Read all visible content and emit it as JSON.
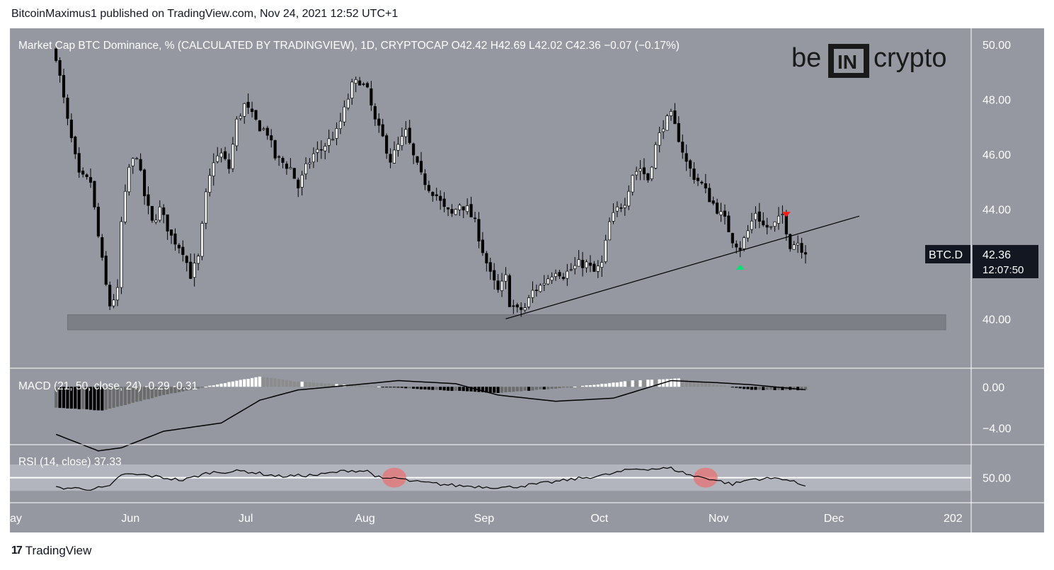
{
  "header": {
    "published": "BitcoinMaximus1 published on TradingView.com, Nov 24, 2021 12:52 UTC+1"
  },
  "footer": {
    "brand": "TradingView"
  },
  "logo": {
    "left": "be",
    "middle": "IN",
    "right": "crypto"
  },
  "legend": {
    "title": "Market Cap BTC Dominance, % (CALCULATED BY TRADINGVIEW), 1D, CRYPTOCAP",
    "o_label": "O",
    "o_value": "42.42",
    "h_label": "H",
    "h_value": "42.69",
    "l_label": "L",
    "l_value": "42.02",
    "c_label": "C",
    "c_value": "42.36",
    "change": "−0.07 (−0.17%)"
  },
  "price_badge": {
    "symbol": "BTC.D",
    "price": "42.36",
    "countdown": "12:07:50"
  },
  "macd_legend": {
    "label": "MACD (21, 50, close, 24)",
    "v1": "-0.29",
    "v2": "-0.31"
  },
  "rsi_legend": {
    "label": "RSI (14, close)",
    "value": "37.33"
  },
  "colors": {
    "background": "#9598a1",
    "candle_up": "#ffffff",
    "candle_down": "#000000",
    "arrow_up": "#00e676",
    "arrow_down": "#ff1a1a",
    "rsi_highlight": "#e57373",
    "support_zone": "#7d7f87"
  },
  "chart_data": [
    {
      "type": "candlestick",
      "title": "Market Cap BTC Dominance, % (CALCULATED BY TRADINGVIEW), 1D, CRYPTOCAP",
      "x_axis_labels": [
        "ay",
        "Jun",
        "Jul",
        "Aug",
        "Sep",
        "Oct",
        "Nov",
        "Dec",
        "202"
      ],
      "y_ticks": [
        "50.00",
        "48.00",
        "46.00",
        "44.00",
        "40.00"
      ],
      "ylim": [
        38.2,
        50.6
      ],
      "close_path": [
        [
          "May 13",
          49.6
        ],
        [
          "May 16",
          47.2
        ],
        [
          "May 19",
          45.2
        ],
        [
          "May 22",
          45.0
        ],
        [
          "May 24",
          43.0
        ],
        [
          "May 26",
          41.2
        ],
        [
          "May 27",
          40.5
        ],
        [
          "May 29",
          41.0
        ],
        [
          "May 30",
          43.5
        ],
        [
          "Jun 1",
          45.5
        ],
        [
          "Jun 3",
          46.0
        ],
        [
          "Jun 5",
          44.5
        ],
        [
          "Jun 7",
          43.5
        ],
        [
          "Jun 9",
          44.0
        ],
        [
          "Jun 12",
          43.0
        ],
        [
          "Jun 15",
          42.5
        ],
        [
          "Jun 17",
          41.6
        ],
        [
          "Jun 19",
          42.2
        ],
        [
          "Jun 21",
          44.5
        ],
        [
          "Jun 23",
          45.8
        ],
        [
          "Jun 25",
          46.0
        ],
        [
          "Jun 27",
          45.5
        ],
        [
          "Jun 29",
          47.2
        ],
        [
          "Jul 1",
          47.8
        ],
        [
          "Jul 3",
          47.4
        ],
        [
          "Jul 5",
          47.0
        ],
        [
          "Jul 7",
          46.8
        ],
        [
          "Jul 9",
          45.9
        ],
        [
          "Jul 11",
          45.7
        ],
        [
          "Jul 13",
          45.5
        ],
        [
          "Jul 15",
          44.8
        ],
        [
          "Jul 17",
          45.5
        ],
        [
          "Jul 19",
          46.0
        ],
        [
          "Jul 21",
          46.2
        ],
        [
          "Jul 23",
          46.5
        ],
        [
          "Jul 25",
          46.8
        ],
        [
          "Jul 27",
          47.6
        ],
        [
          "Jul 29",
          48.5
        ],
        [
          "Jul 31",
          48.7
        ],
        [
          "Aug 2",
          48.3
        ],
        [
          "Aug 4",
          47.2
        ],
        [
          "Aug 6",
          46.6
        ],
        [
          "Aug 8",
          45.8
        ],
        [
          "Aug 10",
          46.3
        ],
        [
          "Aug 12",
          46.8
        ],
        [
          "Aug 14",
          45.9
        ],
        [
          "Aug 16",
          45.2
        ],
        [
          "Aug 18",
          44.8
        ],
        [
          "Aug 20",
          44.5
        ],
        [
          "Aug 22",
          44.0
        ],
        [
          "Aug 24",
          43.8
        ],
        [
          "Aug 26",
          44.2
        ],
        [
          "Aug 28",
          44.0
        ],
        [
          "Aug 30",
          43.5
        ],
        [
          "Sep 1",
          42.5
        ],
        [
          "Sep 3",
          41.6
        ],
        [
          "Sep 5",
          41.0
        ],
        [
          "Sep 7",
          41.5
        ],
        [
          "Sep 8",
          40.6
        ],
        [
          "Sep 10",
          40.3
        ],
        [
          "Sep 12",
          40.4
        ],
        [
          "Sep 14",
          41.0
        ],
        [
          "Sep 16",
          41.2
        ],
        [
          "Sep 18",
          41.5
        ],
        [
          "Sep 20",
          41.8
        ],
        [
          "Sep 22",
          41.6
        ],
        [
          "Sep 24",
          41.8
        ],
        [
          "Sep 26",
          42.0
        ],
        [
          "Sep 28",
          42.0
        ],
        [
          "Sep 30",
          41.7
        ],
        [
          "Oct 2",
          42.0
        ],
        [
          "Oct 4",
          43.5
        ],
        [
          "Oct 6",
          44.0
        ],
        [
          "Oct 8",
          44.3
        ],
        [
          "Oct 10",
          45.3
        ],
        [
          "Oct 12",
          45.5
        ],
        [
          "Oct 14",
          45.1
        ],
        [
          "Oct 16",
          46.3
        ],
        [
          "Oct 18",
          47.1
        ],
        [
          "Oct 20",
          47.4
        ],
        [
          "Oct 22",
          46.6
        ],
        [
          "Oct 24",
          45.7
        ],
        [
          "Oct 26",
          45.2
        ],
        [
          "Oct 28",
          44.9
        ],
        [
          "Oct 30",
          44.4
        ],
        [
          "Nov 1",
          44.0
        ],
        [
          "Nov 3",
          43.6
        ],
        [
          "Nov 5",
          42.9
        ],
        [
          "Nov 7",
          42.6
        ],
        [
          "Nov 9",
          43.2
        ],
        [
          "Nov 11",
          43.9
        ],
        [
          "Nov 13",
          43.4
        ],
        [
          "Nov 15",
          43.3
        ],
        [
          "Nov 17",
          43.6
        ],
        [
          "Nov 18",
          43.8
        ],
        [
          "Nov 20",
          42.7
        ],
        [
          "Nov 22",
          42.8
        ],
        [
          "Nov 24",
          42.36
        ]
      ],
      "annotations": {
        "support_zone": {
          "from": "May 16",
          "to": "Dec 30",
          "low": 39.6,
          "high": 40.15
        },
        "ascending_trendline": {
          "from": [
            "Sep 7",
            40.0
          ],
          "to": [
            "Dec 8",
            43.75
          ]
        },
        "arrow_up": {
          "x": "Nov 7",
          "y": 41.9
        },
        "arrow_down": {
          "x": "Nov 19",
          "y": 43.8
        }
      }
    },
    {
      "type": "histogram+line",
      "title": "MACD (21, 50, close, 24)",
      "y_ticks": [
        "0.00",
        "−4.00"
      ],
      "ylim": [
        -5.6,
        1.8
      ],
      "macd_line": [
        [
          "May 13",
          -4.6
        ],
        [
          "May 24",
          -6.2
        ],
        [
          "May 30",
          -5.9
        ],
        [
          "Jun 10",
          -4.3
        ],
        [
          "Jun 25",
          -3.5
        ],
        [
          "Jul 5",
          -1.3
        ],
        [
          "Jul 15",
          -0.3
        ],
        [
          "Jul 30",
          0.2
        ],
        [
          "Aug 10",
          0.6
        ],
        [
          "Aug 25",
          0.3
        ],
        [
          "Sep 5",
          -0.8
        ],
        [
          "Sep 20",
          -1.4
        ],
        [
          "Oct 5",
          -1.1
        ],
        [
          "Oct 20",
          0.6
        ],
        [
          "Nov 1",
          0.4
        ],
        [
          "Nov 10",
          0.2
        ],
        [
          "Nov 24",
          -0.29
        ]
      ],
      "histogram": [
        [
          "May 13",
          -2.0
        ],
        [
          "May 25",
          -2.3
        ],
        [
          "Jun 10",
          -0.8
        ],
        [
          "Jun 25",
          0.3
        ],
        [
          "Jul 5",
          1.0
        ],
        [
          "Jul 15",
          0.5
        ],
        [
          "Aug 1",
          0.1
        ],
        [
          "Aug 15",
          -0.2
        ],
        [
          "Sep 5",
          -0.6
        ],
        [
          "Sep 25",
          0.0
        ],
        [
          "Oct 10",
          0.6
        ],
        [
          "Oct 22",
          0.8
        ],
        [
          "Nov 1",
          0.2
        ],
        [
          "Nov 10",
          -0.3
        ],
        [
          "Nov 24",
          -0.31
        ]
      ]
    },
    {
      "type": "line",
      "title": "RSI (14, close)",
      "y_ticks": [
        "50.00"
      ],
      "ylim": [
        12,
        100
      ],
      "band": [
        30,
        70
      ],
      "midline": 50,
      "values": [
        [
          "May 13",
          35
        ],
        [
          "May 22",
          33
        ],
        [
          "May 27",
          36
        ],
        [
          "May 30",
          55
        ],
        [
          "Jun 5",
          54
        ],
        [
          "Jun 15",
          46
        ],
        [
          "Jun 22",
          58
        ],
        [
          "Jul 1",
          60
        ],
        [
          "Jul 10",
          52
        ],
        [
          "Jul 20",
          54
        ],
        [
          "Jul 28",
          61
        ],
        [
          "Aug 2",
          60
        ],
        [
          "Aug 6",
          47
        ],
        [
          "Aug 9",
          50
        ],
        [
          "Aug 14",
          44
        ],
        [
          "Aug 25",
          38
        ],
        [
          "Sep 7",
          35
        ],
        [
          "Sep 15",
          40
        ],
        [
          "Sep 25",
          48
        ],
        [
          "Oct 3",
          54
        ],
        [
          "Oct 10",
          63
        ],
        [
          "Oct 20",
          64
        ],
        [
          "Oct 26",
          52
        ],
        [
          "Oct 29",
          50
        ],
        [
          "Nov 5",
          40
        ],
        [
          "Nov 10",
          48
        ],
        [
          "Nov 18",
          49
        ],
        [
          "Nov 24",
          37.33
        ]
      ],
      "highlights": [
        "Aug 9",
        "Oct 29"
      ]
    }
  ]
}
